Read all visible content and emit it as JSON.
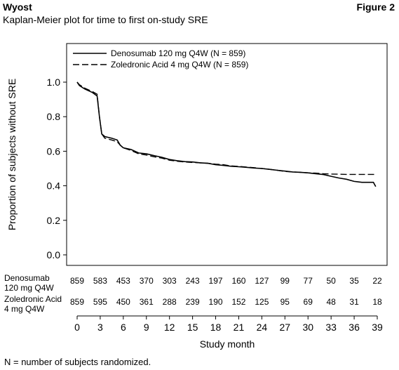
{
  "header": {
    "author": "Wyost",
    "figure_label": "Figure 2",
    "subtitle": "Kaplan-Meier plot for time to first on-study SRE"
  },
  "footnote": "N = number of subjects randomized.",
  "chart_data": {
    "type": "line",
    "title": "Kaplan-Meier plot for time to first on-study SRE",
    "xlabel": "Study month",
    "ylabel": "Proportion of subjects without SRE",
    "xlim": [
      0,
      39
    ],
    "ylim": [
      0,
      1.0
    ],
    "x_ticks": [
      0,
      3,
      6,
      9,
      12,
      15,
      18,
      21,
      24,
      27,
      30,
      33,
      36,
      39
    ],
    "y_ticks": [
      "0.0",
      "0.2",
      "0.4",
      "0.6",
      "0.8",
      "1.0"
    ],
    "grid": false,
    "legend_position": "top-left",
    "series": [
      {
        "name": "Denosumab 120 mg Q4W (N = 859)",
        "style": "solid",
        "color": "#000000",
        "points": [
          [
            0,
            1.0
          ],
          [
            0.3,
            0.98
          ],
          [
            1,
            0.96
          ],
          [
            2,
            0.94
          ],
          [
            2.6,
            0.92
          ],
          [
            2.9,
            0.8
          ],
          [
            3.2,
            0.7
          ],
          [
            3.6,
            0.685
          ],
          [
            4.5,
            0.675
          ],
          [
            5.2,
            0.665
          ],
          [
            5.6,
            0.635
          ],
          [
            6,
            0.62
          ],
          [
            7,
            0.61
          ],
          [
            8,
            0.59
          ],
          [
            9,
            0.585
          ],
          [
            10,
            0.575
          ],
          [
            11,
            0.565
          ],
          [
            12,
            0.552
          ],
          [
            13,
            0.545
          ],
          [
            14,
            0.54
          ],
          [
            15,
            0.538
          ],
          [
            16,
            0.533
          ],
          [
            17,
            0.53
          ],
          [
            18,
            0.522
          ],
          [
            19,
            0.518
          ],
          [
            20,
            0.513
          ],
          [
            21,
            0.51
          ],
          [
            22,
            0.507
          ],
          [
            23,
            0.503
          ],
          [
            24,
            0.5
          ],
          [
            25,
            0.495
          ],
          [
            26,
            0.49
          ],
          [
            27,
            0.485
          ],
          [
            28,
            0.48
          ],
          [
            29,
            0.478
          ],
          [
            30,
            0.475
          ],
          [
            31,
            0.47
          ],
          [
            32,
            0.465
          ],
          [
            33,
            0.455
          ],
          [
            34,
            0.445
          ],
          [
            35,
            0.438
          ],
          [
            36,
            0.425
          ],
          [
            37,
            0.42
          ],
          [
            38.5,
            0.42
          ],
          [
            38.8,
            0.395
          ]
        ]
      },
      {
        "name": "Zoledronic Acid 4 mg Q4W (N = 859)",
        "style": "dashed",
        "color": "#000000",
        "points": [
          [
            0,
            1.0
          ],
          [
            0.3,
            0.985
          ],
          [
            1,
            0.965
          ],
          [
            2,
            0.945
          ],
          [
            2.6,
            0.93
          ],
          [
            2.9,
            0.8
          ],
          [
            3.2,
            0.7
          ],
          [
            3.6,
            0.675
          ],
          [
            4.5,
            0.665
          ],
          [
            5.2,
            0.655
          ],
          [
            5.6,
            0.635
          ],
          [
            6,
            0.62
          ],
          [
            7,
            0.605
          ],
          [
            8,
            0.585
          ],
          [
            9,
            0.578
          ],
          [
            10,
            0.568
          ],
          [
            11,
            0.56
          ],
          [
            12,
            0.548
          ],
          [
            13,
            0.542
          ],
          [
            14,
            0.538
          ],
          [
            15,
            0.535
          ],
          [
            16,
            0.533
          ],
          [
            17,
            0.53
          ],
          [
            18,
            0.525
          ],
          [
            19,
            0.522
          ],
          [
            20,
            0.515
          ],
          [
            21,
            0.512
          ],
          [
            22,
            0.508
          ],
          [
            23,
            0.505
          ],
          [
            24,
            0.5
          ],
          [
            25,
            0.495
          ],
          [
            26,
            0.49
          ],
          [
            27,
            0.483
          ],
          [
            28,
            0.48
          ],
          [
            29,
            0.478
          ],
          [
            30,
            0.475
          ],
          [
            31,
            0.473
          ],
          [
            32,
            0.47
          ],
          [
            33,
            0.468
          ],
          [
            34,
            0.467
          ],
          [
            35,
            0.466
          ],
          [
            36,
            0.466
          ],
          [
            37,
            0.466
          ],
          [
            38.8,
            0.466
          ]
        ]
      }
    ],
    "risk_table": {
      "x": [
        0,
        3,
        6,
        9,
        12,
        15,
        18,
        21,
        24,
        27,
        30,
        33,
        36,
        39
      ],
      "rows": [
        {
          "label_line1": "Denosumab",
          "label_line2": "120 mg Q4W",
          "counts": [
            "859",
            "583",
            "453",
            "370",
            "303",
            "243",
            "197",
            "160",
            "127",
            "99",
            "77",
            "50",
            "35",
            "22"
          ]
        },
        {
          "label_line1": "Zoledronic Acid",
          "label_line2": "4 mg Q4W",
          "counts": [
            "859",
            "595",
            "450",
            "361",
            "288",
            "239",
            "190",
            "152",
            "125",
            "95",
            "69",
            "48",
            "31",
            "18"
          ]
        }
      ]
    }
  }
}
